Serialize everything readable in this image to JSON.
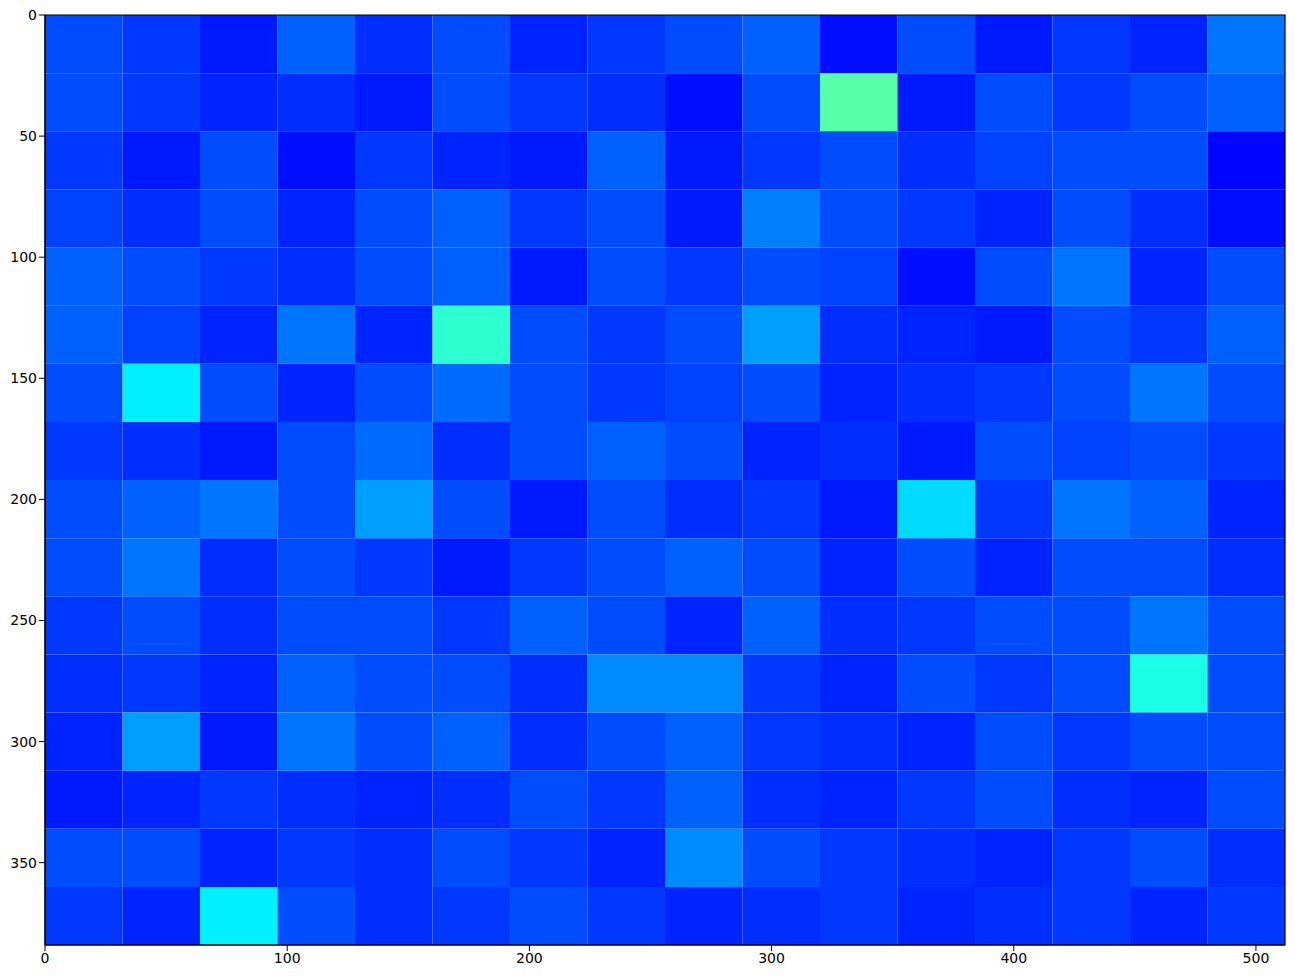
{
  "chart_data": {
    "type": "heatmap",
    "xlim": [
      0,
      512
    ],
    "ylim": [
      384,
      0
    ],
    "xticks": [
      0,
      100,
      200,
      300,
      400,
      500
    ],
    "yticks": [
      0,
      50,
      100,
      150,
      200,
      250,
      300,
      350
    ],
    "zlim": [
      0,
      1
    ],
    "cells": [
      [
        0.2,
        0.18,
        0.15,
        0.22,
        0.17,
        0.2,
        0.16,
        0.18,
        0.2,
        0.22,
        0.14,
        0.2,
        0.15,
        0.18,
        0.16,
        0.24
      ],
      [
        0.2,
        0.18,
        0.16,
        0.17,
        0.15,
        0.2,
        0.18,
        0.17,
        0.14,
        0.2,
        0.46,
        0.15,
        0.2,
        0.18,
        0.2,
        0.22
      ],
      [
        0.18,
        0.15,
        0.2,
        0.14,
        0.18,
        0.16,
        0.15,
        0.22,
        0.15,
        0.18,
        0.2,
        0.17,
        0.19,
        0.2,
        0.2,
        0.13
      ],
      [
        0.19,
        0.17,
        0.2,
        0.16,
        0.2,
        0.22,
        0.18,
        0.2,
        0.15,
        0.25,
        0.2,
        0.18,
        0.16,
        0.2,
        0.17,
        0.14
      ],
      [
        0.22,
        0.2,
        0.18,
        0.17,
        0.2,
        0.22,
        0.15,
        0.2,
        0.18,
        0.2,
        0.19,
        0.14,
        0.2,
        0.24,
        0.16,
        0.2
      ],
      [
        0.22,
        0.19,
        0.16,
        0.24,
        0.16,
        0.42,
        0.2,
        0.18,
        0.2,
        0.28,
        0.17,
        0.16,
        0.15,
        0.2,
        0.18,
        0.22
      ],
      [
        0.2,
        0.36,
        0.2,
        0.16,
        0.2,
        0.23,
        0.2,
        0.18,
        0.19,
        0.2,
        0.16,
        0.17,
        0.18,
        0.2,
        0.24,
        0.2
      ],
      [
        0.18,
        0.17,
        0.15,
        0.2,
        0.23,
        0.17,
        0.2,
        0.22,
        0.2,
        0.16,
        0.17,
        0.15,
        0.2,
        0.19,
        0.2,
        0.18
      ],
      [
        0.2,
        0.22,
        0.24,
        0.2,
        0.28,
        0.2,
        0.15,
        0.2,
        0.17,
        0.18,
        0.15,
        0.34,
        0.18,
        0.24,
        0.22,
        0.16
      ],
      [
        0.2,
        0.24,
        0.17,
        0.2,
        0.18,
        0.15,
        0.18,
        0.2,
        0.22,
        0.2,
        0.16,
        0.2,
        0.16,
        0.2,
        0.2,
        0.17
      ],
      [
        0.18,
        0.2,
        0.17,
        0.2,
        0.2,
        0.18,
        0.22,
        0.2,
        0.16,
        0.22,
        0.17,
        0.18,
        0.2,
        0.2,
        0.24,
        0.2
      ],
      [
        0.17,
        0.18,
        0.16,
        0.22,
        0.2,
        0.2,
        0.17,
        0.26,
        0.26,
        0.18,
        0.16,
        0.2,
        0.18,
        0.2,
        0.4,
        0.2
      ],
      [
        0.16,
        0.28,
        0.15,
        0.24,
        0.2,
        0.22,
        0.17,
        0.2,
        0.22,
        0.18,
        0.17,
        0.16,
        0.2,
        0.18,
        0.2,
        0.2
      ],
      [
        0.15,
        0.16,
        0.18,
        0.17,
        0.16,
        0.17,
        0.2,
        0.18,
        0.22,
        0.17,
        0.16,
        0.18,
        0.2,
        0.17,
        0.16,
        0.2
      ],
      [
        0.2,
        0.2,
        0.16,
        0.18,
        0.17,
        0.2,
        0.18,
        0.16,
        0.26,
        0.2,
        0.18,
        0.17,
        0.16,
        0.18,
        0.2,
        0.17
      ],
      [
        0.18,
        0.16,
        0.36,
        0.2,
        0.17,
        0.18,
        0.2,
        0.18,
        0.16,
        0.17,
        0.18,
        0.16,
        0.17,
        0.18,
        0.16,
        0.18
      ]
    ]
  }
}
